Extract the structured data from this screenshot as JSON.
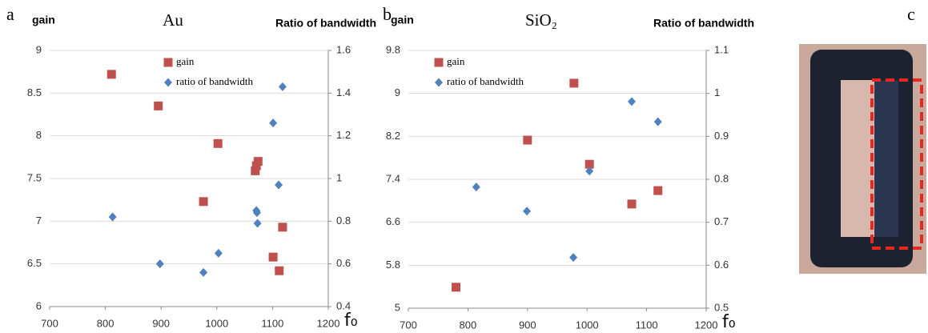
{
  "chart_data": [
    {
      "type": "scatter",
      "panel_label": "a",
      "title": "Au",
      "y_label": "gain",
      "y2_label": "Ratio of bandwidth",
      "x_label": "f₀",
      "xlim": [
        700,
        1200
      ],
      "xticks": [
        700,
        800,
        900,
        1000,
        1100,
        1200
      ],
      "ylim": [
        6,
        9
      ],
      "yticks": [
        6,
        6.5,
        7,
        7.5,
        8,
        8.5,
        9
      ],
      "y2lim": [
        0.4,
        1.6
      ],
      "y2ticks": [
        0.4,
        0.6,
        0.8,
        1,
        1.2,
        1.4,
        1.6
      ],
      "grid": true,
      "series": [
        {
          "name": "gain",
          "color": "#c0504d",
          "marker": "square",
          "x": [
            811,
            895,
            1002,
            976,
            1074,
            1071,
            1069,
            1118,
            1101,
            1112
          ],
          "values": [
            8.72,
            8.35,
            7.91,
            7.23,
            7.7,
            7.65,
            7.59,
            6.93,
            6.58,
            6.42
          ]
        },
        {
          "name": "ratio of bandwidth",
          "color": "#4f81bd",
          "marker": "diamond",
          "axis": "y2",
          "x": [
            813,
            898,
            1003,
            976,
            1071,
            1072,
            1073,
            1111,
            1101,
            1118
          ],
          "values": [
            0.82,
            0.6,
            0.65,
            0.56,
            0.85,
            0.84,
            0.79,
            0.97,
            1.26,
            1.43
          ]
        }
      ]
    },
    {
      "type": "scatter",
      "panel_label": "b",
      "title": "SiO₂",
      "y_label": "gain",
      "y2_label": "Ratio of bandwidth",
      "x_label": "f₀",
      "xlim": [
        700,
        1200
      ],
      "xticks": [
        700,
        800,
        900,
        1000,
        1100,
        1200
      ],
      "ylim": [
        5,
        9.8
      ],
      "yticks": [
        5,
        5.8,
        6.6,
        7.4,
        8.2,
        9,
        9.8
      ],
      "y2lim": [
        0.5,
        1.1
      ],
      "y2ticks": [
        0.5,
        0.6,
        0.7,
        0.8,
        0.9,
        1,
        1.1
      ],
      "grid": true,
      "series": [
        {
          "name": "gain",
          "color": "#c0504d",
          "marker": "square",
          "x": [
            780,
            900,
            978,
            1004,
            1075,
            1119
          ],
          "values": [
            5.39,
            8.13,
            9.19,
            7.68,
            6.94,
            7.19
          ]
        },
        {
          "name": "ratio of bandwidth",
          "color": "#4f81bd",
          "marker": "diamond",
          "axis": "y2",
          "x": [
            814,
            899,
            977,
            1004,
            1075,
            1119
          ],
          "values": [
            0.782,
            0.726,
            0.618,
            0.819,
            0.981,
            0.934
          ]
        }
      ]
    }
  ],
  "photo": {
    "panel_label": "c"
  }
}
